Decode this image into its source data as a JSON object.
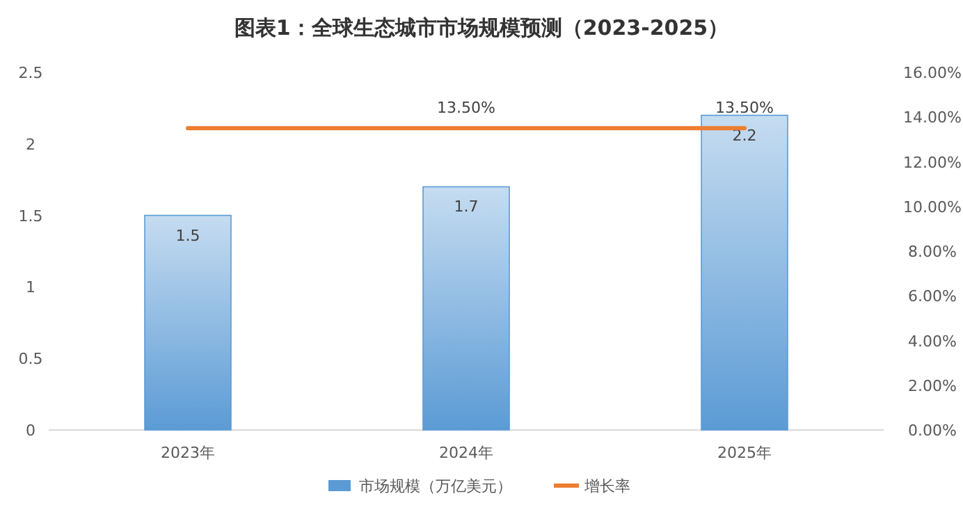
{
  "chart_data": {
    "type": "bar",
    "title": "图表1：全球生态城市市场规模预测（2023-2025）",
    "categories": [
      "2023年",
      "2024年",
      "2025年"
    ],
    "series": [
      {
        "name": "市场规模（万亿美元）",
        "color": "#5b9bd5",
        "values": [
          1.5,
          1.7,
          2.2
        ],
        "value_labels": [
          "1.5",
          "1.7",
          "2.2"
        ]
      },
      {
        "name": "增长率",
        "type": "line",
        "axis": "y2",
        "color": "#ed7d31",
        "values": [
          13.5,
          13.5,
          13.5
        ],
        "value_labels": [
          null,
          "13.50%",
          "13.50%"
        ]
      }
    ],
    "ylim": [
      0,
      2.5
    ],
    "yticks": [
      0,
      0.5,
      1,
      1.5,
      2,
      2.5
    ],
    "y2lim": [
      0,
      16
    ],
    "y2ticks": [
      {
        "value": 0,
        "label": "0.00%"
      },
      {
        "value": 2,
        "label": "2.00%"
      },
      {
        "value": 4,
        "label": "4.00%"
      },
      {
        "value": 6,
        "label": "6.00%"
      },
      {
        "value": 8,
        "label": "8.00%"
      },
      {
        "value": 10,
        "label": "10.00%"
      },
      {
        "value": 12,
        "label": "12.00%"
      },
      {
        "value": 14,
        "label": "14.00%"
      },
      {
        "value": 16,
        "label": "16.00%"
      }
    ],
    "grid": false,
    "legend": "bottom",
    "marker": "none",
    "line_style": "solid"
  }
}
